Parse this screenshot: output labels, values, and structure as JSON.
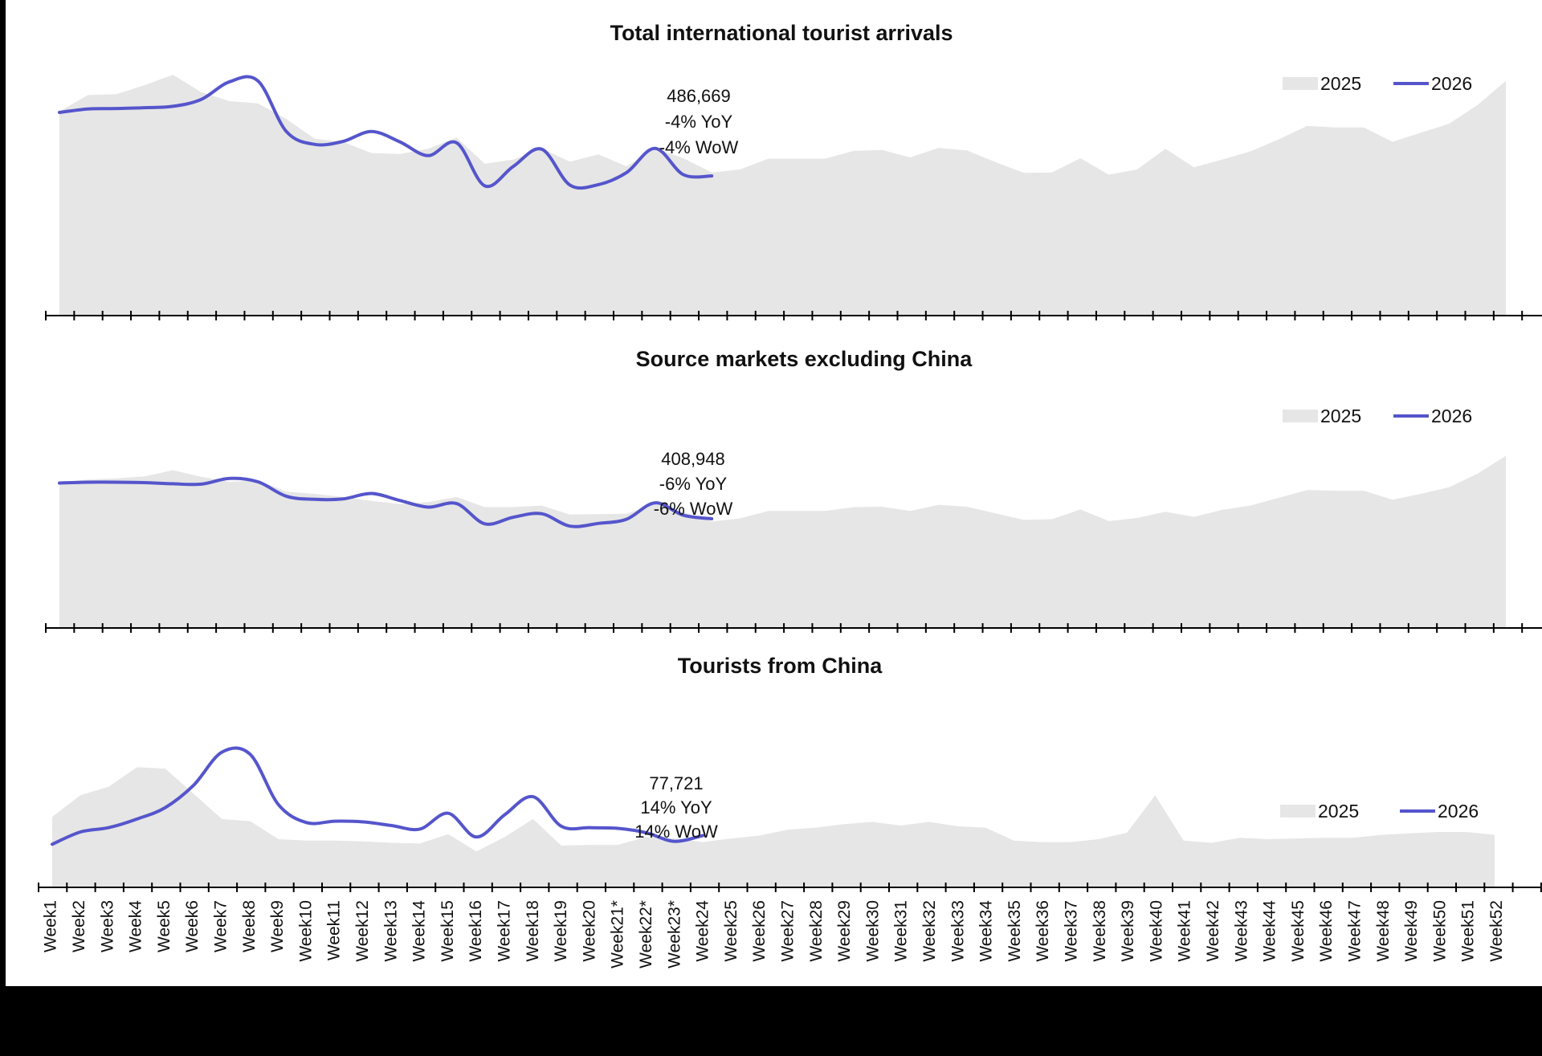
{
  "colors": {
    "area_2025": "#e6e6e6",
    "line_2026": "#5555cc",
    "axis": "#000000",
    "text": "#111111"
  },
  "legend": {
    "series_2025": "2025",
    "series_2026": "2026"
  },
  "chart_data": [
    {
      "type": "area",
      "title": "Total international tourist arrivals",
      "ylim": [
        0,
        600000
      ],
      "legend_position": "top-right",
      "annotation": {
        "lines": [
          "486,669",
          "-4% YoY",
          "-4% WoW"
        ]
      },
      "series": [
        {
          "name": "2025",
          "type": "area",
          "values": [
            472000,
            510000,
            512000,
            533000,
            557000,
            517000,
            496000,
            491000,
            455000,
            409000,
            402000,
            376000,
            374000,
            386000,
            412000,
            351000,
            361000,
            387000,
            356000,
            373000,
            345000,
            387000,
            364000,
            331000,
            338000,
            363000,
            363000,
            363000,
            381000,
            383000,
            366000,
            388000,
            382000,
            355000,
            330000,
            331000,
            364000,
            326000,
            338000,
            386000,
            343000,
            361000,
            380000,
            408000,
            439000,
            435000,
            435000,
            402000,
            423000,
            444000,
            487000,
            543000
          ]
        },
        {
          "name": "2026",
          "type": "line",
          "values": [
            470000,
            478000,
            479000,
            481000,
            484000,
            500000,
            541000,
            543000,
            426000,
            396000,
            403000,
            426000,
            402000,
            370000,
            400000,
            300000,
            345000,
            385000,
            302000,
            303000,
            331000,
            387000,
            326000,
            323000
          ]
        }
      ]
    },
    {
      "type": "area",
      "title": "Source markets excluding China",
      "ylim": [
        0,
        500000
      ],
      "legend_position": "top-right",
      "annotation": {
        "lines": [
          "408,948",
          "-6% YoY",
          "-6% WoW"
        ]
      },
      "series": [
        {
          "name": "2025",
          "type": "area",
          "values": [
            375000,
            382000,
            385000,
            390000,
            406000,
            389000,
            376000,
            380000,
            351000,
            345000,
            337000,
            327000,
            319000,
            324000,
            337000,
            311000,
            311000,
            315000,
            292000,
            293000,
            294000,
            319000,
            298000,
            274000,
            282000,
            301000,
            301000,
            301000,
            311000,
            312000,
            301000,
            317000,
            312000,
            295000,
            278000,
            280000,
            305000,
            275000,
            283000,
            299000,
            286000,
            304000,
            315000,
            335000,
            355000,
            353000,
            353000,
            330000,
            345000,
            362000,
            397000,
            443000
          ]
        },
        {
          "name": "2026",
          "type": "line",
          "values": [
            373000,
            375000,
            375000,
            374000,
            371000,
            370000,
            385000,
            376000,
            339000,
            331000,
            332000,
            346000,
            328000,
            311000,
            320000,
            268000,
            285000,
            294000,
            262000,
            269000,
            280000,
            322000,
            290000,
            281000
          ]
        }
      ]
    },
    {
      "type": "area",
      "title": "Tourists from China",
      "ylim": [
        0,
        240000
      ],
      "legend_position": "right",
      "annotation": {
        "lines": [
          "77,721",
          "14% YoY",
          "14% WoW"
        ]
      },
      "x_ticks": [
        "Week1",
        "Week2",
        "Week3",
        "Week4",
        "Week5",
        "Week6",
        "Week7",
        "Week8",
        "Week9",
        "Week10",
        "Week11",
        "Week12",
        "Week13",
        "Week14",
        "Week15",
        "Week16",
        "Week17",
        "Week18",
        "Week19",
        "Week20",
        "Week21*",
        "Week22*",
        "Week23*",
        "Week24",
        "Week25",
        "Week26",
        "Week27",
        "Week28",
        "Week29",
        "Week30",
        "Week31",
        "Week32",
        "Week33",
        "Week34",
        "Week35",
        "Week36",
        "Week37",
        "Week38",
        "Week39",
        "Week40",
        "Week41",
        "Week42",
        "Week43",
        "Week44",
        "Week45",
        "Week46",
        "Week47",
        "Week48",
        "Week49",
        "Week50",
        "Week51",
        "Week52"
      ],
      "series": [
        {
          "name": "2025",
          "type": "area",
          "values": [
            98000,
            128000,
            140000,
            167000,
            165000,
            130000,
            95000,
            92000,
            67000,
            65000,
            65000,
            64000,
            62000,
            61000,
            74000,
            50000,
            70000,
            95000,
            58000,
            59000,
            59000,
            70000,
            68000,
            63000,
            68000,
            72000,
            80000,
            83000,
            88000,
            91000,
            86000,
            91000,
            85000,
            83000,
            65000,
            63000,
            63000,
            67000,
            76000,
            128000,
            65000,
            62000,
            69000,
            67000,
            68000,
            69000,
            69000,
            73000,
            75000,
            77000,
            77000,
            73000
          ]
        },
        {
          "name": "2026",
          "type": "line",
          "values": [
            60000,
            77000,
            83000,
            95000,
            111000,
            142000,
            188000,
            185000,
            115000,
            90000,
            92000,
            91000,
            86000,
            81000,
            103000,
            70000,
            101000,
            126000,
            85000,
            83000,
            82000,
            76000,
            64000,
            72000
          ]
        }
      ]
    }
  ]
}
